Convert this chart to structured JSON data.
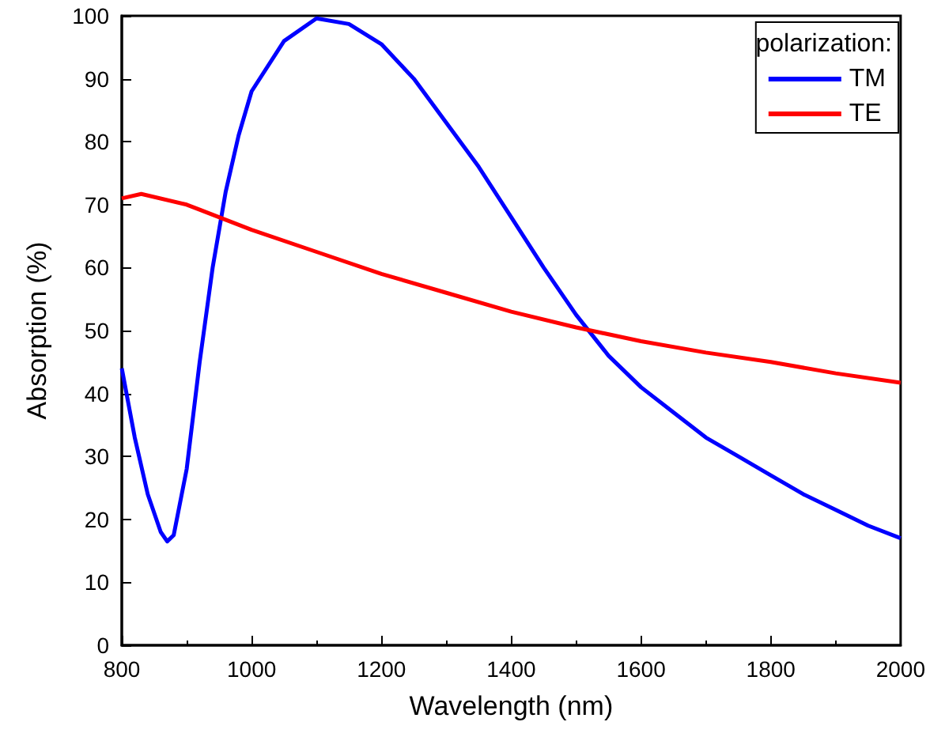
{
  "chart_data": {
    "type": "line",
    "xlabel": "Wavelength (nm)",
    "ylabel": "Absorption (%)",
    "legend_title": "polarization:",
    "legend": "top right",
    "grid": false,
    "marker": "none",
    "line_style": "solid",
    "xlim": [
      800,
      2000
    ],
    "xticks": [
      800,
      1000,
      1200,
      1400,
      1600,
      1800,
      2000
    ],
    "ylim": [
      0,
      100
    ],
    "yticks": [
      0,
      10,
      20,
      30,
      40,
      50,
      60,
      70,
      80,
      90,
      100
    ],
    "series": [
      {
        "name": "TM",
        "color": "#0000ff",
        "x": [
          800,
          820,
          840,
          860,
          870,
          880,
          900,
          920,
          940,
          960,
          980,
          1000,
          1050,
          1100,
          1150,
          1200,
          1250,
          1300,
          1350,
          1400,
          1450,
          1500,
          1550,
          1600,
          1650,
          1700,
          1750,
          1800,
          1850,
          1900,
          1950,
          2000
        ],
        "values": [
          44,
          33,
          24,
          18,
          16.5,
          17.5,
          28,
          45,
          60,
          72,
          81,
          88,
          96,
          99.6,
          98.7,
          95.5,
          90,
          83,
          76,
          68,
          60,
          52.5,
          46,
          41,
          37,
          33,
          30,
          27,
          24,
          21.5,
          19,
          17
        ]
      },
      {
        "name": "TE",
        "color": "#ff0000",
        "x": [
          800,
          830,
          900,
          1000,
          1100,
          1200,
          1300,
          1400,
          1500,
          1600,
          1700,
          1800,
          1900,
          2000
        ],
        "values": [
          71,
          71.7,
          70,
          66,
          62.5,
          59,
          56,
          53,
          50.5,
          48.3,
          46.5,
          45,
          43.2,
          41.7
        ]
      }
    ]
  }
}
